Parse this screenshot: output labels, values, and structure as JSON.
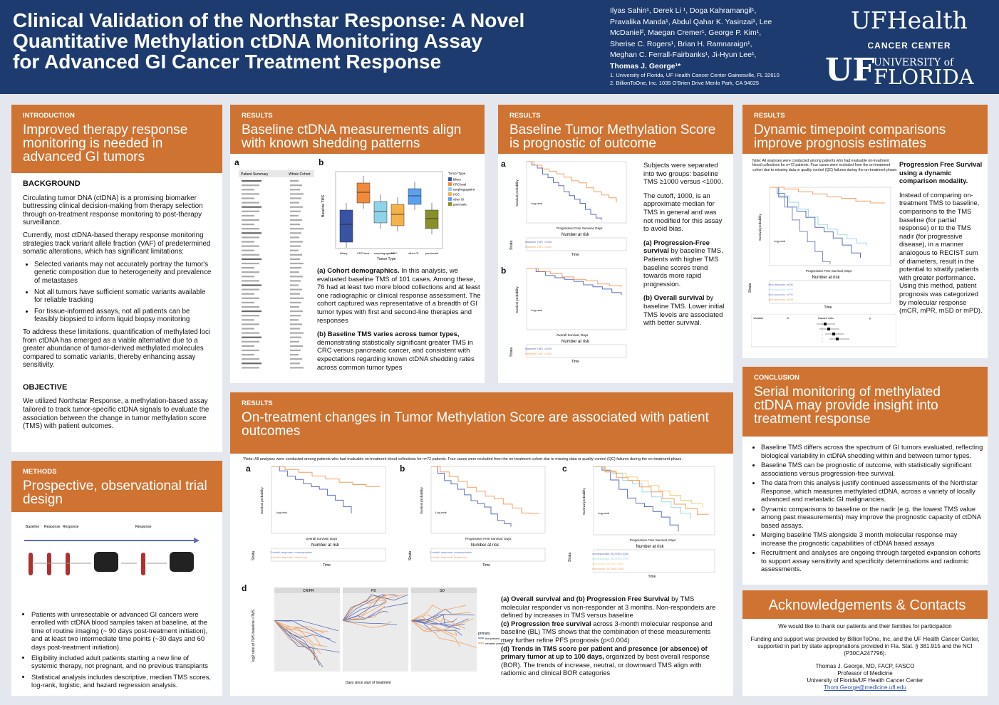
{
  "header": {
    "title_lines": [
      "Clinical Validation of the Northstar Response: A Novel",
      "Quantitative Methylation ctDNA Monitoring Assay",
      "for Advanced GI Cancer Treatment Response"
    ],
    "authors_lines": [
      "Ilyas Sahin¹, Derek Li ¹, Doga Kahramangil¹,",
      "Pravalika Manda¹, Abdul Qahar K. Yasinzai¹, Lee",
      "McDaniel², Maegan Cremer¹, George P. Kim¹,",
      "Sherise C. Rogers¹, Brian H. Ramnaraign¹,",
      "Meghan C. Ferrall-Fairbanks¹, Ji-Hyun Lee¹,",
      "Thomas J. George¹*"
    ],
    "affiliations": [
      "1. University of Florida, UF Health Cancer Center Gainesville, FL 32610",
      "2. BillionToOne, Inc. 1035 O'Brien Drive Menlo Park, CA 94025"
    ],
    "logo_uf_health": "UFHealth",
    "logo_cancer_center": "CANCER CENTER",
    "logo_uf": "UF",
    "logo_university_of": "UNIVERSITY of",
    "logo_florida": "FLORIDA"
  },
  "intro": {
    "label": "INTRODUCTION",
    "heading": "Improved therapy response monitoring is needed in advanced GI tumors",
    "background_title": "BACKGROUND",
    "p1": "Circulating tumor DNA (ctDNA) is a promising biomarker buttressing clinical decision-making from therapy selection through on-treatment response monitoring to post-therapy surveillance.",
    "p2": "Currently, most ctDNA-based therapy response monitoring strategies track variant allele fraction (VAF) of predetermined somatic alterations, which has significant limitations:",
    "bullets": [
      "Selected variants may not accurately portray the tumor's genetic composition due to heterogeneity and prevalence of metastases",
      "Not all tumors have sufficient somatic variants available for reliable tracking",
      "For tissue-informed assays, not all patients can be feasibly biopsied to inform liquid biopsy monitoring"
    ],
    "p3": "To address these limitations, quantification of methylated loci from ctDNA has emerged as a viable alternative due to a greater abundance of tumor-derived methylated molecules compared to somatic variants, thereby enhancing assay sensitivity.",
    "objective_title": "OBJECTIVE",
    "objective": "We utilized Northstar Response, a methylation-based assay tailored to track tumor-specific ctDNA signals to evaluate the association between the change in tumor methylation score (TMS) with patient outcomes."
  },
  "methods": {
    "label": "METHODS",
    "heading": "Prospective, observational trial design",
    "timeline_labels": [
      "Baseline",
      "Response",
      "Response",
      "Response"
    ],
    "bullets": [
      "Patients with unresectable or advanced GI cancers were enrolled with ctDNA blood samples taken at baseline, at the time of routine imaging (~ 90 days post-treatment initiation), and at least two intermediate time points (~30 days and 60 days post-treatment initiation).",
      "Eligibility included adult patients starting a new line of systemic therapy, not pregnant, and no previous transplants",
      "Statistical analysis includes descriptive, median TMS scores, log-rank, logistic, and hazard regression analysis."
    ]
  },
  "results1": {
    "label": "RESULTS",
    "heading": "Baseline ctDNA measurements align with known shedding patterns",
    "fig_a": "a",
    "fig_b": "b",
    "table_head": [
      "Patient Summary",
      "Whole Cohort"
    ],
    "boxplot_categories": [
      "biliary",
      "CRC/anal",
      "esophagogastric",
      "HCC",
      "other GI",
      "pancreatic"
    ],
    "boxplot_xlabel": "Tumor Type",
    "boxplot_ylabel": "Baseline TMS",
    "boxplot_legend_title": "Tumor Type",
    "cap_a_title": "(a) Cohort demographics.",
    "cap_a": " In this analysis, we evaluated baseline TMS of 101 cases. Among these, 76 had at least two more blood collections and at least one radiographic or clinical response assessment. The cohort captured was representative of a breadth of GI tumor types with first and second-line therapies and responses",
    "cap_b_title": "(b) Baseline TMS varies across tumor types,",
    "cap_b": " demonstrating statistically significant greater TMS in CRC versus pancreatic cancer, and consistent with expectations regarding known ctDNA shedding rates across common tumor types"
  },
  "results2": {
    "label": "RESULTS",
    "heading": "Baseline Tumor Methylation Score is prognostic of outcome",
    "fig_a": "a",
    "fig_b": "b",
    "p1": "Subjects were separated into two groups: baseline TMS ≥1000 versus <1000.",
    "p2": "The cutoff, 1000, is an approximate median for TMS in general and was not modified for this assay to avoid bias.",
    "a_title": "(a) Progression-Free survival",
    "a_text": " by baseline TMS. Patients with higher TMS baseline scores trend towards more rapid progression.",
    "b_title": "(b) Overall survival",
    "b_text": " by baseline TMS. Lower initial TMS levels are associated with better survival.",
    "km_a_xlabel": "Progression Free Survival, Days",
    "km_b_xlabel": "Overall Survival, Days",
    "km_ylabel": "Survival probability",
    "at_risk": "Number at risk",
    "time_label": "Time",
    "strata_label": "Strata",
    "legend_high": "Baseline TMS >1000",
    "legend_low": "Baseline TMS <1000",
    "logrank": "Log-rank"
  },
  "results3": {
    "label": "RESULTS",
    "heading": "Dynamic timepoint comparisons improve prognosis estimates",
    "note": "Note: All analyses were conducted among patients who had evaluable on-treatment blood collections for n=72 patients. Four cases were excluded from the on-treatment cohort due to missing data or quality control (QC) failures during the on-treatment phase.",
    "side_title": "Progression Free Survival using a dynamic comparison modality.",
    "side_text": "Instead of comparing on-treatment TMS to baseline, comparisons to the TMS baseline (for partial response) or to the TMS nadir (for progressive disease), in a manner analogous to RECIST sum of diameters, result in the potential to stratify patients with greater performance. Using this method, patient prognosis was categorized by molecular response (mCR, mPR, mSD or mPD).",
    "legend": [
      "3mo dynamic: mSD",
      "3mo dynamic: mPR",
      "3mo dynamic: mPD",
      "3mo dynamic: mCR"
    ],
    "km_xlabel": "Progression Free Survival, Days",
    "at_risk": "Number at risk",
    "time_label": "Time",
    "forest_header": [
      "Variable",
      "N",
      "Hazard ratio",
      "p"
    ]
  },
  "results4": {
    "label": "RESULTS",
    "heading": "On-treatment changes in Tumor Methylation Score are associated with patient outcomes",
    "note": "*Note: All analyses were conducted among patients who had evaluable on-treatment blood collections for n=72 patients. Four cases were excluded from the on-treatment cohort due to missing data or quality control (QC) failures during the on-treatment phase.",
    "figs": [
      "a",
      "b",
      "c",
      "d"
    ],
    "km_a_xlabel": "Overall Survival, Days",
    "km_b_xlabel": "Progression Free Survival, Days",
    "km_c_xlabel": "Progression Free Survival, Days",
    "legend_nonresp": "3 month response: nonresponder",
    "legend_resp": "3 month response: responder",
    "legend_c": [
      "nonresponder; BLTMS<1000",
      "nonresponder; BLTMS>1000",
      "responder; BLTMS<1000",
      "responder; BLTMS>1000"
    ],
    "at_risk": "Number at risk",
    "time_label": "Time",
    "strata_label": "Strata",
    "facets": [
      "CR/PR",
      "PD",
      "SD"
    ],
    "d_xlabel": "Days since start of treatment",
    "d_ylabel": "log2 ratio of TMS baseline->TMS",
    "d_legend_title": "primary",
    "d_legend": [
      "not present",
      "remains present"
    ],
    "cap_ab_title": "(a) Overall survival and (b) Progression Free Survival",
    "cap_ab": " by TMS molecular responder vs non-responder at 3 months. Non-responders are defined by increases in TMS versus baseline",
    "cap_c_title": "(c) Progression free survival",
    "cap_c": " across 3-month molecular response and baseline (BL) TMS shows that the combination of these measurements may further refine PFS prognosis (p<0.004)",
    "cap_d_title": "(d) Trends in TMS score per patient and presence (or absence) of primary tumor at up to 100 days,",
    "cap_d": " organized by best overall response (BOR). The trends of increase, neutral, or downward TMS align with radiomic and clinical BOR categories"
  },
  "conclusion": {
    "label": "CONCLUSION",
    "heading": "Serial monitoring of methylated ctDNA may provide insight into treatment response",
    "bullets": [
      "Baseline TMS differs across the spectrum of GI tumors evaluated, reflecting biological variability in ctDNA shedding within and between tumor types.",
      "Baseline TMS can be prognostic of outcome, with statistically significant associations versus progression-free survival.",
      "The data from this analysis justify continued assessments of the Northstar Response, which measures methylated ctDNA, across a variety of locally advanced and metastatic GI malignancies.",
      "Dynamic comparisons to baseline or the nadir (e.g. the lowest TMS value among past measurements) may improve the prognostic capacity of ctDNA based assays.",
      "Merging baseline TMS alongside 3 month molecular response may increase the prognostic capabilities of ctDNA based assays",
      "Recruitment and analyses are ongoing through targeted expansion cohorts to support assay sensitivity and specificity determinations and radiomic assessments."
    ]
  },
  "acknowledgements": {
    "heading": "Acknowledgements & Contacts",
    "thanks": "We would like to thank our patients and their families for participation",
    "funding": "Funding and support was provided by BillionToOne, Inc. and the UF Health Cancer Center, supported in part by state appropriations provided in Fla. Stat. § 381.915 and the NCI (P30CA247796).",
    "contact_lines": [
      "Thomas J. George, MD, FACP, FASCO",
      "Professor of Medicine",
      "University of Florida/UF Health Cancer Center"
    ],
    "email": "Thom.George@medicine.ufl.edu"
  },
  "colors": {
    "navy": "#1d3b6e",
    "orange": "#cf7333",
    "blue_series": "#5a6fb8",
    "orange_series": "#f0a060"
  }
}
